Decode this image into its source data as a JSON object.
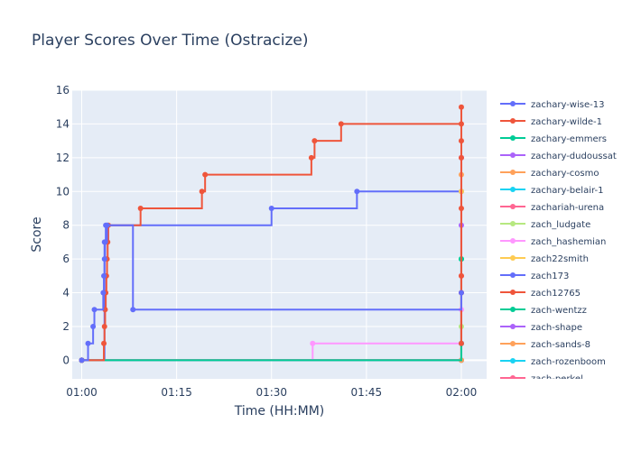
{
  "chart_data": {
    "type": "line",
    "title": "Player Scores Over Time (Ostracize)",
    "xlabel": "Time (HH:MM)",
    "ylabel": "Score",
    "x_range_minutes": [
      58.5,
      124
    ],
    "x_ticks": [
      {
        "minute": 60,
        "label": "01:00"
      },
      {
        "minute": 75,
        "label": "01:15"
      },
      {
        "minute": 90,
        "label": "01:30"
      },
      {
        "minute": 105,
        "label": "01:45"
      },
      {
        "minute": 120,
        "label": "02:00"
      }
    ],
    "ylim": [
      -1.1,
      16
    ],
    "y_ticks": [
      0,
      2,
      4,
      6,
      8,
      10,
      12,
      14,
      16
    ],
    "grid": true,
    "legend_position": "right",
    "line_shape": "step",
    "series": [
      {
        "name": "zachary-wise-13",
        "color": "#636efa",
        "x": [
          60,
          61,
          61.8,
          62,
          63.4,
          63.5,
          63.6,
          63.7,
          64,
          68.1,
          120
        ],
        "y": [
          0,
          1,
          2,
          3,
          4,
          5,
          6,
          7,
          8,
          3,
          4
        ]
      },
      {
        "name": "zachary-wilde-1",
        "color": "#EF553B",
        "x": [
          60,
          63.5,
          63.6,
          63.7,
          63.8,
          63.9,
          64,
          64.1,
          64.2,
          69.3,
          79,
          79.5,
          96.3,
          96.8,
          101,
          120,
          120,
          120,
          120,
          120,
          120,
          120,
          120
        ],
        "y": [
          0,
          1,
          2,
          3,
          4,
          5,
          6,
          7,
          8,
          9,
          10,
          11,
          12,
          13,
          14,
          14,
          1,
          4,
          5,
          9,
          12,
          13,
          15
        ]
      },
      {
        "name": "zachary-emmers",
        "color": "#00cc96",
        "x": [
          60,
          120
        ],
        "y": [
          0,
          6
        ]
      },
      {
        "name": "zachary-dudoussat",
        "color": "#ab63fa",
        "x": [
          60,
          120
        ],
        "y": [
          0,
          12
        ]
      },
      {
        "name": "zachary-cosmo",
        "color": "#FFA15A",
        "x": [
          60,
          120
        ],
        "y": [
          0,
          11
        ]
      },
      {
        "name": "zachary-belair-1",
        "color": "#19d3f3",
        "x": [
          60,
          120
        ],
        "y": [
          0,
          1
        ]
      },
      {
        "name": "zachariah-urena",
        "color": "#FF6692",
        "x": [
          60,
          120
        ],
        "y": [
          0,
          5
        ]
      },
      {
        "name": "zach_ludgate",
        "color": "#B6E880",
        "x": [
          60,
          120
        ],
        "y": [
          0,
          2
        ]
      },
      {
        "name": "zach_hashemian",
        "color": "#FF97FF",
        "x": [
          60,
          96.5,
          120
        ],
        "y": [
          0,
          1,
          3
        ]
      },
      {
        "name": "zach22smith",
        "color": "#FECB52",
        "x": [
          60,
          120
        ],
        "y": [
          0,
          10
        ]
      },
      {
        "name": "zach173",
        "color": "#636efa",
        "x": [
          60,
          63.6,
          63.8,
          90,
          103.5,
          120,
          120
        ],
        "y": [
          0,
          7,
          8,
          9,
          10,
          10,
          1
        ]
      },
      {
        "name": "zach12765",
        "color": "#EF553B",
        "x": [
          60,
          120
        ],
        "y": [
          0,
          4
        ]
      },
      {
        "name": "zach-wentzz",
        "color": "#00cc96",
        "x": [
          60,
          120
        ],
        "y": [
          0,
          6
        ]
      },
      {
        "name": "zach-shape",
        "color": "#ab63fa",
        "x": [
          60,
          120
        ],
        "y": [
          0,
          8
        ]
      },
      {
        "name": "zach-sands-8",
        "color": "#FFA15A",
        "x": [
          60,
          120
        ],
        "y": [
          0,
          0
        ]
      },
      {
        "name": "zach-rozenboom",
        "color": "#19d3f3",
        "x": [
          60,
          120
        ],
        "y": [
          0,
          0
        ]
      },
      {
        "name": "zach-perkel",
        "color": "#FF6692",
        "x": [
          60,
          120
        ],
        "y": [
          0,
          0
        ]
      }
    ]
  }
}
